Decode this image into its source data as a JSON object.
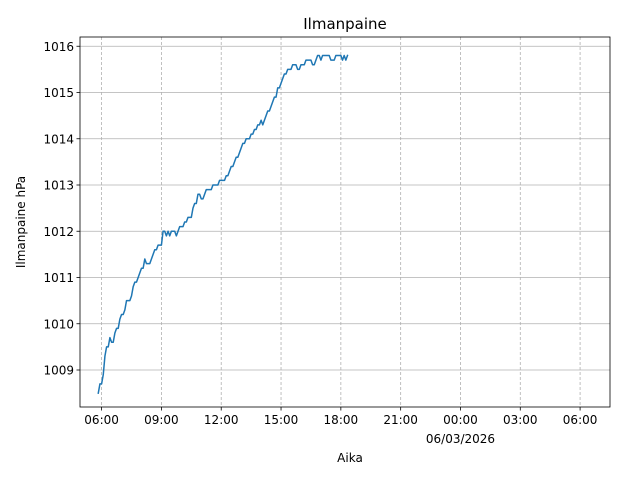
{
  "chart_data": {
    "type": "line",
    "title": "Ilmanpaine",
    "xlabel": "Aika",
    "ylabel": "Ilmanpaine hPa",
    "x_start": "2026-03-05 05:50",
    "x_step_minutes": 5,
    "xlim": [
      "2026-03-05 04:55",
      "2026-03-06 07:30"
    ],
    "ylim": [
      1008.2,
      1016.2
    ],
    "yticks": [
      1009,
      1010,
      1011,
      1012,
      1013,
      1014,
      1015,
      1016
    ],
    "xticks": [
      {
        "time": "2026-03-05 06:00",
        "label": "06:00"
      },
      {
        "time": "2026-03-05 09:00",
        "label": "09:00"
      },
      {
        "time": "2026-03-05 12:00",
        "label": "12:00"
      },
      {
        "time": "2026-03-05 15:00",
        "label": "15:00"
      },
      {
        "time": "2026-03-05 18:00",
        "label": "18:00"
      },
      {
        "time": "2026-03-05 21:00",
        "label": "21:00"
      },
      {
        "time": "2026-03-06 00:00",
        "label": "00:00",
        "sublabel": "06/03/2026"
      },
      {
        "time": "2026-03-06 03:00",
        "label": "03:00"
      },
      {
        "time": "2026-03-06 06:00",
        "label": "06:00"
      }
    ],
    "grid": {
      "x": "dashed",
      "y": "solid"
    },
    "colors": {
      "line": "#1f77b4",
      "grid": "#b0b0b0"
    },
    "series": [
      {
        "values": [
          1008.5,
          1008.7,
          1008.7,
          1008.9,
          1009.3,
          1009.5,
          1009.5,
          1009.7,
          1009.6,
          1009.6,
          1009.8,
          1009.9,
          1009.9,
          1010.1,
          1010.2,
          1010.2,
          1010.3,
          1010.5,
          1010.5,
          1010.5,
          1010.6,
          1010.8,
          1010.9,
          1010.9,
          1011.0,
          1011.1,
          1011.2,
          1011.2,
          1011.4,
          1011.3,
          1011.3,
          1011.3,
          1011.4,
          1011.5,
          1011.6,
          1011.6,
          1011.7,
          1011.7,
          1011.7,
          1012.0,
          1012.0,
          1011.9,
          1012.0,
          1011.9,
          1012.0,
          1012.0,
          1012.0,
          1011.9,
          1012.0,
          1012.1,
          1012.1,
          1012.1,
          1012.2,
          1012.2,
          1012.3,
          1012.3,
          1012.3,
          1012.5,
          1012.6,
          1012.6,
          1012.8,
          1012.8,
          1012.7,
          1012.7,
          1012.8,
          1012.9,
          1012.9,
          1012.9,
          1012.9,
          1013.0,
          1013.0,
          1013.0,
          1013.0,
          1013.1,
          1013.1,
          1013.1,
          1013.1,
          1013.2,
          1013.2,
          1013.3,
          1013.4,
          1013.4,
          1013.5,
          1013.6,
          1013.6,
          1013.7,
          1013.8,
          1013.9,
          1013.9,
          1014.0,
          1014.0,
          1014.0,
          1014.1,
          1014.1,
          1014.2,
          1014.2,
          1014.3,
          1014.3,
          1014.4,
          1014.3,
          1014.4,
          1014.5,
          1014.6,
          1014.6,
          1014.7,
          1014.8,
          1014.9,
          1014.9,
          1015.1,
          1015.1,
          1015.2,
          1015.3,
          1015.4,
          1015.4,
          1015.5,
          1015.5,
          1015.5,
          1015.6,
          1015.6,
          1015.6,
          1015.5,
          1015.5,
          1015.6,
          1015.6,
          1015.6,
          1015.7,
          1015.7,
          1015.7,
          1015.7,
          1015.6,
          1015.6,
          1015.7,
          1015.8,
          1015.8,
          1015.7,
          1015.8,
          1015.8,
          1015.8,
          1015.8,
          1015.8,
          1015.7,
          1015.7,
          1015.7,
          1015.8,
          1015.8,
          1015.8,
          1015.8,
          1015.7,
          1015.8,
          1015.7,
          1015.8
        ]
      }
    ]
  }
}
